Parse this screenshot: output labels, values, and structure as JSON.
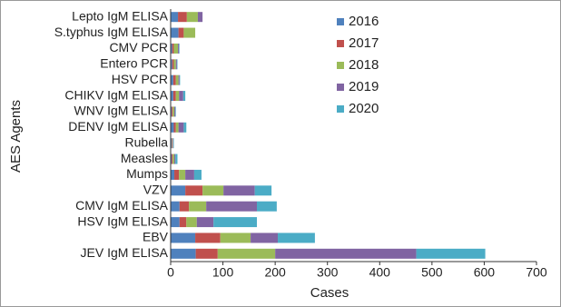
{
  "chart_data": {
    "type": "stacked-bar-horizontal",
    "ylabel": "AES Agents",
    "xlabel": "Cases",
    "categories": [
      "Lepto IgM ELISA",
      "S.typhus IgM ELISA",
      "CMV PCR",
      "Entero PCR",
      "HSV PCR",
      "CHIKV IgM ELISA",
      "WNV IgM ELISA",
      "DENV IgM ELISA",
      "Rubella",
      "Measles",
      "Mumps",
      "VZV",
      "CMV IgM ELISA",
      "HSV IgM ELISA",
      "EBV",
      "JEV IgM ELISA"
    ],
    "series": [
      {
        "name": "2016",
        "color": "#4f81bd",
        "values": [
          14,
          15,
          3,
          3,
          5,
          5,
          2,
          6,
          2,
          2,
          7,
          28,
          17,
          17,
          47,
          48
        ]
      },
      {
        "name": "2017",
        "color": "#c0504d",
        "values": [
          17,
          10,
          3,
          3,
          5,
          5,
          2,
          4,
          1,
          2,
          9,
          33,
          18,
          13,
          48,
          42
        ]
      },
      {
        "name": "2018",
        "color": "#9bbb59",
        "values": [
          21,
          22,
          8,
          4,
          5,
          6,
          3,
          5,
          1,
          3,
          12,
          40,
          33,
          20,
          58,
          110
        ]
      },
      {
        "name": "2019",
        "color": "#8064a2",
        "values": [
          9,
          0,
          2,
          2,
          2,
          8,
          2,
          10,
          1,
          2,
          17,
          60,
          97,
          32,
          52,
          270
        ]
      },
      {
        "name": "2020",
        "color": "#4bacc6",
        "values": [
          0,
          0,
          1,
          1,
          1,
          4,
          1,
          5,
          1,
          4,
          14,
          32,
          38,
          83,
          71,
          132
        ]
      }
    ],
    "xlim": [
      0,
      700
    ],
    "xticks": [
      0,
      100,
      200,
      300,
      400,
      500,
      600,
      700
    ],
    "grid": false,
    "legend": "top-right"
  }
}
